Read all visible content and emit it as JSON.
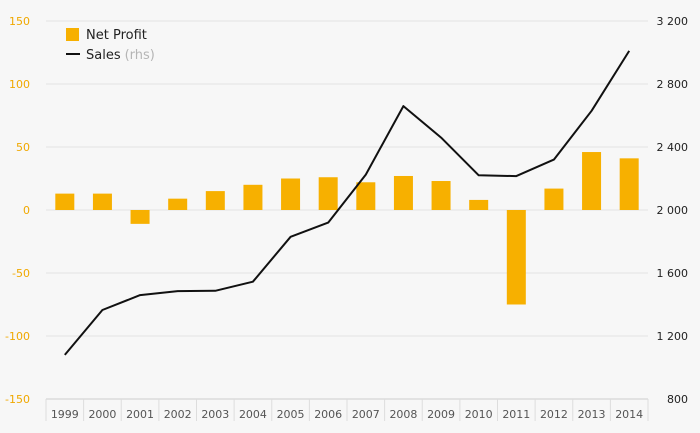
{
  "chart_data": {
    "type": "bar",
    "categories": [
      "1999",
      "2000",
      "2001",
      "2002",
      "2003",
      "2004",
      "2005",
      "2006",
      "2007",
      "2008",
      "2009",
      "2010",
      "2011",
      "2012",
      "2013",
      "2014"
    ],
    "series": [
      {
        "name": "Net Profit",
        "type": "bar",
        "axis": "left",
        "color": "#f7b000",
        "values": [
          13,
          13,
          -11,
          9,
          15,
          20,
          25,
          26,
          22,
          27,
          23,
          8,
          -75,
          17,
          46,
          41
        ]
      },
      {
        "name": "Sales",
        "name_suffix": "(rhs)",
        "type": "line",
        "axis": "right",
        "color": "#111111",
        "values": [
          1080,
          1365,
          1460,
          1485,
          1487,
          1545,
          1830,
          1920,
          2225,
          2660,
          2460,
          2220,
          2215,
          2320,
          2630,
          3010
        ]
      }
    ],
    "y_left": {
      "ylim": [
        -150,
        150
      ],
      "ticks": [
        150,
        100,
        50,
        0,
        -50,
        -100,
        -150
      ],
      "tick_labels": [
        "150",
        "100",
        "50",
        "0",
        "-50",
        "-100",
        "-150"
      ]
    },
    "y_right": {
      "ylim": [
        800,
        3200
      ],
      "ticks": [
        3200,
        2800,
        2400,
        2000,
        1600,
        1200,
        800
      ],
      "tick_labels": [
        "3 200",
        "2 800",
        "2 400",
        "2 000",
        "1 600",
        "1 200",
        "800"
      ]
    },
    "grid": true,
    "legend_position": "top-left",
    "colors": {
      "bar": "#f7b000",
      "line": "#111111",
      "left_axis": "#f0a800",
      "grid": "#e3e3e3"
    }
  }
}
